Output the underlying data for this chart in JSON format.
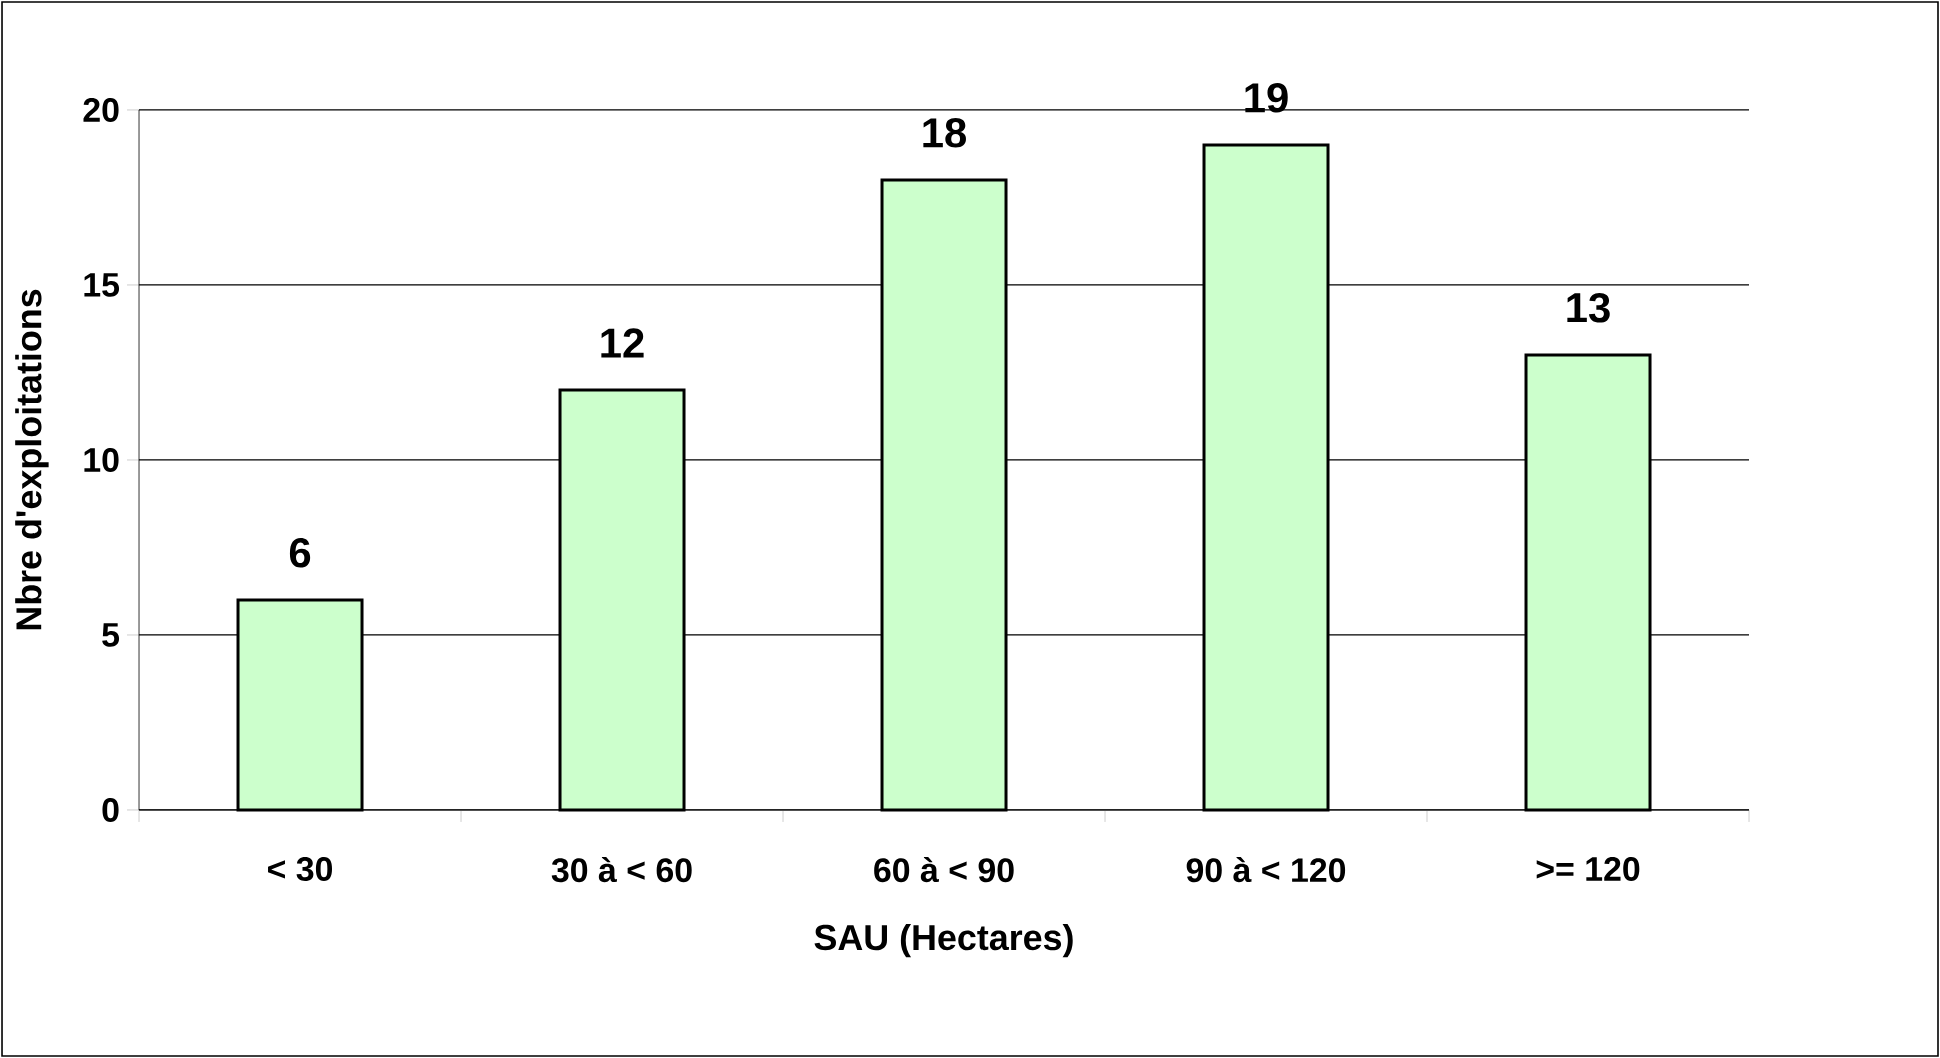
{
  "chart_data": {
    "type": "bar",
    "xlabel": "SAU (Hectares)",
    "ylabel": "Nbre d'exploitations",
    "categories": [
      "< 30",
      "30 à < 60",
      "60 à < 90",
      "90 à < 120",
      ">= 120"
    ],
    "values": [
      6,
      12,
      18,
      19,
      13
    ],
    "color": "#ccffcc",
    "ylim": [
      0,
      20
    ],
    "yticks": [
      0,
      5,
      10,
      15,
      20
    ],
    "grid": "y",
    "data_labels": true
  }
}
